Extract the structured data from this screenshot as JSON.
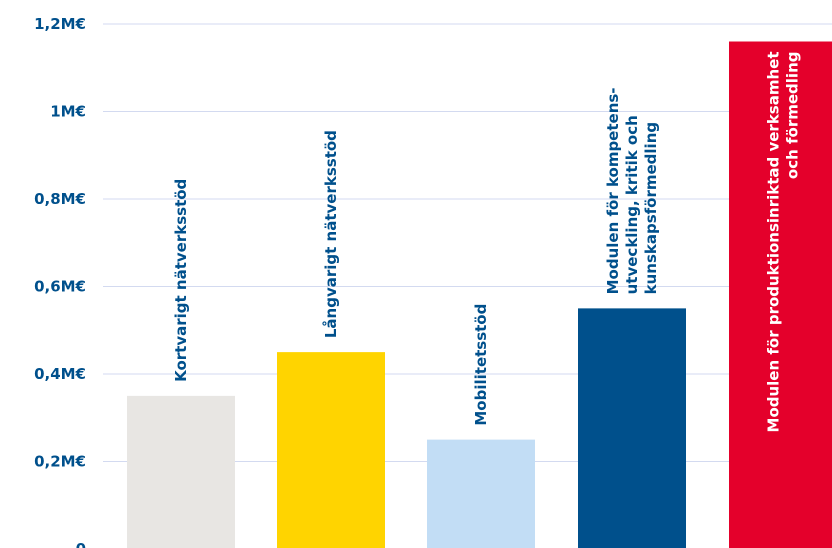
{
  "chart_data": {
    "type": "bar",
    "title": "",
    "xlabel": "",
    "ylabel": "",
    "ylim": [
      0,
      1.2
    ],
    "grid": true,
    "y_ticks": [
      {
        "value": 0,
        "label": "0"
      },
      {
        "value": 0.2,
        "label": "0,2M€"
      },
      {
        "value": 0.4,
        "label": "0,4M€"
      },
      {
        "value": 0.6,
        "label": "0,6M€"
      },
      {
        "value": 0.8,
        "label": "0,8M€"
      },
      {
        "value": 1.0,
        "label": "1M€"
      },
      {
        "value": 1.2,
        "label": "1,2M€"
      }
    ],
    "categories": [
      [
        "Kortvarigt nätverksstöd"
      ],
      [
        "Långvarigt nätverksstöd"
      ],
      [
        "Mobilitetsstöd"
      ],
      [
        "Modulen för kompetens-",
        "utveckling, kritik och",
        "kunskapsförmedling"
      ],
      [
        "Modulen för produktionsinriktad verksamhet",
        "och förmedling"
      ]
    ],
    "values": [
      0.35,
      0.45,
      0.25,
      0.55,
      1.16
    ],
    "colors": [
      "#E8E6E3",
      "#FFD400",
      "#C2DDF5",
      "#00508C",
      "#E4002B"
    ],
    "label_colors": [
      "#00508C",
      "#00508C",
      "#00508C",
      "#00508C",
      "#FFFFFF"
    ],
    "label_inside": [
      false,
      false,
      false,
      false,
      true
    ],
    "axis_color": "#00508C",
    "grid_color": "#D3DAF0"
  }
}
